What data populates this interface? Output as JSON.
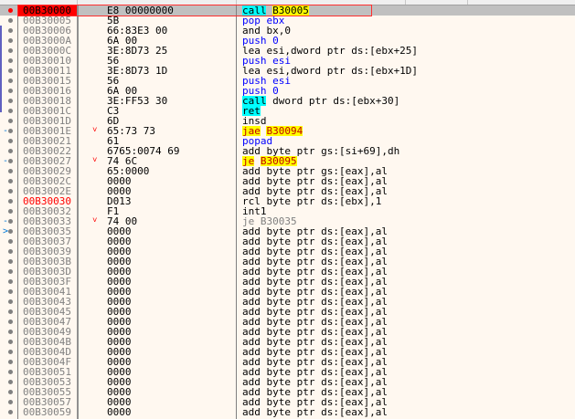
{
  "colors": {
    "breakpoint": "#ff0000",
    "selection": "#c0c0c0",
    "background": "#fff8f0",
    "call_highlight": "#00ffff",
    "jump_highlight": "#ffff00"
  },
  "disassembly": [
    {
      "address": "00B30000",
      "bytes": "E8 00000000",
      "instruction": "call B30005",
      "current": true,
      "breakpoint": true
    },
    {
      "address": "00B30005",
      "bytes": "5B",
      "instruction": "pop ebx"
    },
    {
      "address": "00B30006",
      "bytes": "66:83E3 00",
      "instruction": "and bx,0"
    },
    {
      "address": "00B3000A",
      "bytes": "6A 00",
      "instruction": "push 0"
    },
    {
      "address": "00B3000C",
      "bytes": "3E:8D73 25",
      "instruction": "lea esi,dword ptr ds:[ebx+25]"
    },
    {
      "address": "00B30010",
      "bytes": "56",
      "instruction": "push esi"
    },
    {
      "address": "00B30011",
      "bytes": "3E:8D73 1D",
      "instruction": "lea esi,dword ptr ds:[ebx+1D]"
    },
    {
      "address": "00B30015",
      "bytes": "56",
      "instruction": "push esi"
    },
    {
      "address": "00B30016",
      "bytes": "6A 00",
      "instruction": "push 0"
    },
    {
      "address": "00B30018",
      "bytes": "3E:FF53 30",
      "instruction": "call dword ptr ds:[ebx+30]"
    },
    {
      "address": "00B3001C",
      "bytes": "C3",
      "instruction": "ret"
    },
    {
      "address": "00B3001D",
      "bytes": "6D",
      "instruction": "insd"
    },
    {
      "address": "00B3001E",
      "bytes": "65:73 73",
      "instruction": "jae B30094",
      "jump": true
    },
    {
      "address": "00B30021",
      "bytes": "61",
      "instruction": "popad"
    },
    {
      "address": "00B30022",
      "bytes": "6765:0074 69",
      "instruction": "add byte ptr gs:[si+69],dh"
    },
    {
      "address": "00B30027",
      "bytes": "74 6C",
      "instruction": "je B30095",
      "jump": true
    },
    {
      "address": "00B30029",
      "bytes": "65:0000",
      "instruction": "add byte ptr gs:[eax],al"
    },
    {
      "address": "00B3002C",
      "bytes": "0000",
      "instruction": "add byte ptr ds:[eax],al"
    },
    {
      "address": "00B3002E",
      "bytes": "0000",
      "instruction": "add byte ptr ds:[eax],al"
    },
    {
      "address": "00B30030",
      "bytes": "D013",
      "instruction": "rcl byte ptr ds:[ebx],1",
      "label_red": true
    },
    {
      "address": "00B30032",
      "bytes": "F1",
      "instruction": "int1"
    },
    {
      "address": "00B30033",
      "bytes": "74 00",
      "instruction": "je B30035",
      "jump": true,
      "dimmed": true
    },
    {
      "address": "00B30035",
      "bytes": "0000",
      "instruction": "add byte ptr ds:[eax],al",
      "jump_dest": true
    },
    {
      "address": "00B30037",
      "bytes": "0000",
      "instruction": "add byte ptr ds:[eax],al"
    },
    {
      "address": "00B30039",
      "bytes": "0000",
      "instruction": "add byte ptr ds:[eax],al"
    },
    {
      "address": "00B3003B",
      "bytes": "0000",
      "instruction": "add byte ptr ds:[eax],al"
    },
    {
      "address": "00B3003D",
      "bytes": "0000",
      "instruction": "add byte ptr ds:[eax],al"
    },
    {
      "address": "00B3003F",
      "bytes": "0000",
      "instruction": "add byte ptr ds:[eax],al"
    },
    {
      "address": "00B30041",
      "bytes": "0000",
      "instruction": "add byte ptr ds:[eax],al"
    },
    {
      "address": "00B30043",
      "bytes": "0000",
      "instruction": "add byte ptr ds:[eax],al"
    },
    {
      "address": "00B30045",
      "bytes": "0000",
      "instruction": "add byte ptr ds:[eax],al"
    },
    {
      "address": "00B30047",
      "bytes": "0000",
      "instruction": "add byte ptr ds:[eax],al"
    },
    {
      "address": "00B30049",
      "bytes": "0000",
      "instruction": "add byte ptr ds:[eax],al"
    },
    {
      "address": "00B3004B",
      "bytes": "0000",
      "instruction": "add byte ptr ds:[eax],al"
    },
    {
      "address": "00B3004D",
      "bytes": "0000",
      "instruction": "add byte ptr ds:[eax],al"
    },
    {
      "address": "00B3004F",
      "bytes": "0000",
      "instruction": "add byte ptr ds:[eax],al"
    },
    {
      "address": "00B30051",
      "bytes": "0000",
      "instruction": "add byte ptr ds:[eax],al"
    },
    {
      "address": "00B30053",
      "bytes": "0000",
      "instruction": "add byte ptr ds:[eax],al"
    },
    {
      "address": "00B30055",
      "bytes": "0000",
      "instruction": "add byte ptr ds:[eax],al"
    },
    {
      "address": "00B30057",
      "bytes": "0000",
      "instruction": "add byte ptr ds:[eax],al"
    },
    {
      "address": "00B30059",
      "bytes": "0000",
      "instruction": "add byte ptr ds:[eax],al"
    }
  ]
}
